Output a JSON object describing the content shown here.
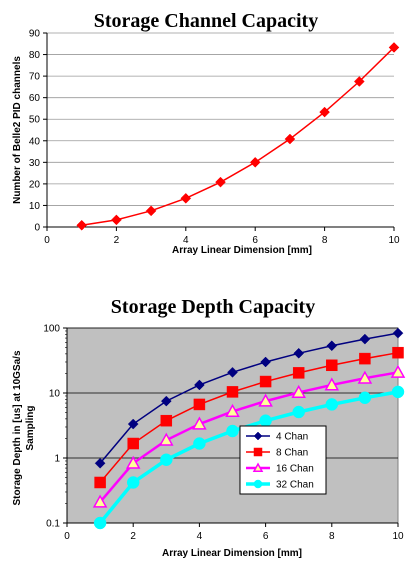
{
  "chart_data": [
    {
      "type": "line",
      "title": "Storage Channel Capacity",
      "xlabel": "Array Linear Dimension [mm]",
      "ylabel": "Number of Belle2 PID channels",
      "xlim": [
        0,
        10
      ],
      "ylim": [
        0,
        90
      ],
      "xticks": [
        "0",
        "2",
        "4",
        "6",
        "8",
        "10"
      ],
      "yticks": [
        "0",
        "10",
        "20",
        "30",
        "40",
        "50",
        "60",
        "70",
        "80",
        "90"
      ],
      "grid": "horizontal",
      "x": [
        1,
        2,
        3,
        4,
        5,
        6,
        7,
        8,
        9,
        10
      ],
      "series": [
        {
          "color": "#ff0000",
          "marker": "diamond",
          "values": [
            0.8,
            3.3,
            7.5,
            13.3,
            20.8,
            30,
            40.8,
            53.3,
            67.5,
            83.3
          ]
        }
      ]
    },
    {
      "type": "line",
      "title": "Storage Depth Capacity",
      "xlabel": "Array Linear Dimension [mm]",
      "ylabel_lines": [
        "Storage Depth in [us] at 10GSa/s",
        "Sampling"
      ],
      "scale_y": "log",
      "xlim": [
        0,
        10
      ],
      "ylim": [
        0.1,
        100
      ],
      "xticks": [
        "0",
        "2",
        "4",
        "6",
        "8",
        "10"
      ],
      "yticks": [
        "0.1",
        "1",
        "10",
        "100"
      ],
      "grid": "horizontal",
      "background": "#c0c0c0",
      "legend_position": "right",
      "x": [
        1,
        2,
        3,
        4,
        5,
        6,
        7,
        8,
        9,
        10
      ],
      "series": [
        {
          "name": "4 Chan",
          "color": "#000080",
          "marker": "diamond",
          "values": [
            0.83,
            3.33,
            7.5,
            13.3,
            20.8,
            30,
            40.8,
            53.3,
            67.5,
            83.3
          ]
        },
        {
          "name": "8 Chan",
          "color": "#ff0000",
          "marker": "square",
          "values": [
            0.42,
            1.67,
            3.75,
            6.67,
            10.4,
            15,
            20.4,
            26.7,
            33.8,
            41.7
          ]
        },
        {
          "name": "16 Chan",
          "color": "#ff00ff",
          "marker": "triangle",
          "fill": "#ffff99",
          "values": [
            0.21,
            0.83,
            1.88,
            3.33,
            5.21,
            7.5,
            10.2,
            13.3,
            16.9,
            20.8
          ]
        },
        {
          "name": "32 Chan",
          "color": "#00ffff",
          "marker": "circle",
          "values": [
            0.1,
            0.42,
            0.94,
            1.67,
            2.6,
            3.75,
            5.1,
            6.67,
            8.44,
            10.4
          ]
        }
      ]
    }
  ]
}
